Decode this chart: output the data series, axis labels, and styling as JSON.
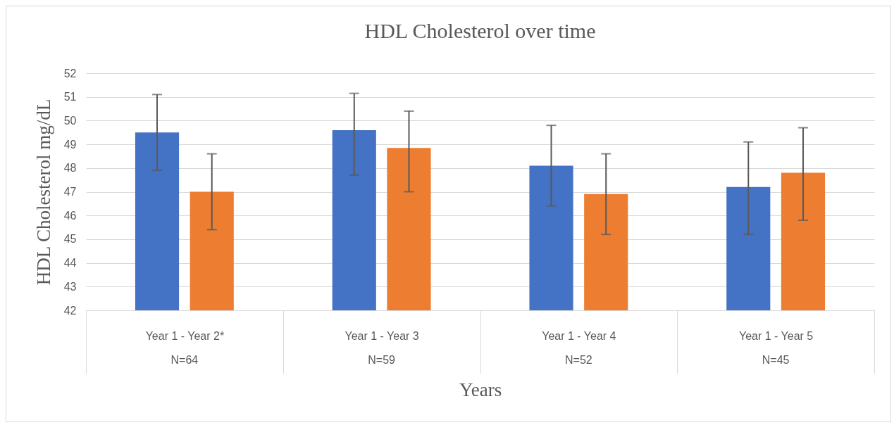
{
  "chart_data": {
    "type": "bar",
    "title": "HDL Cholesterol over time",
    "xlabel": "Years",
    "ylabel": "HDL Cholesterol mg/dL",
    "categories": [
      "Year 1 - Year 2*",
      "Year 1 - Year 3",
      "Year 1 - Year 4",
      "Year 1 - Year 5"
    ],
    "annotations": [
      "N=64",
      "N=59",
      "N=52",
      "N=45"
    ],
    "series": [
      {
        "color": "#4472c4",
        "values": [
          49.5,
          49.6,
          48.1,
          47.2
        ],
        "errors": [
          [
            47.9,
            51.1
          ],
          [
            47.7,
            51.15
          ],
          [
            46.4,
            49.8
          ],
          [
            45.2,
            49.1
          ]
        ]
      },
      {
        "color": "#ed7d31",
        "values": [
          47.0,
          48.85,
          46.9,
          47.8
        ],
        "errors": [
          [
            45.4,
            48.6
          ],
          [
            47.0,
            50.4
          ],
          [
            45.2,
            48.6
          ],
          [
            45.8,
            49.7
          ]
        ]
      }
    ],
    "ylim": [
      42,
      52
    ],
    "yticks": [
      42,
      43,
      44,
      45,
      46,
      47,
      48,
      49,
      50,
      51,
      52
    ],
    "grid": "y"
  }
}
